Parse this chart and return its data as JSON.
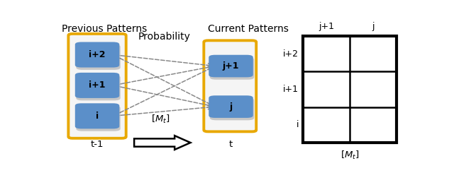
{
  "fig_width": 6.4,
  "fig_height": 2.45,
  "dpi": 100,
  "bg_color": "#ffffff",
  "title_left": "Previous Patterns",
  "title_right": "Current Patterns",
  "label_prob": "Probability",
  "label_t_minus1": "t-1",
  "label_t": "t",
  "left_nodes": [
    "i+2",
    "i+1",
    "i"
  ],
  "right_nodes": [
    "j+1",
    "j"
  ],
  "node_box_color": "#5b8fc9",
  "node_text_color": "#000000",
  "outer_box_color": "#e8a800",
  "arrow_color": "#888888",
  "matrix_rows": [
    "i+2",
    "i+1",
    "i"
  ],
  "matrix_cols": [
    "j+1",
    "j"
  ],
  "matrix_label": "[ M_t ]"
}
